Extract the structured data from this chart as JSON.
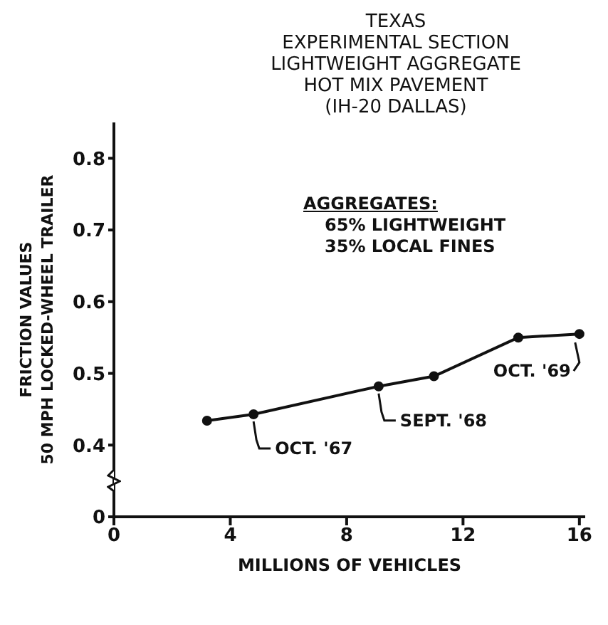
{
  "chart_data": {
    "type": "line",
    "title": "TEXAS\nEXPERIMENTAL SECTION\nLIGHTWEIGHT AGGREGATE\nHOT MIX PAVEMENT\n(IH-20 DALLAS)",
    "xlabel": "MILLIONS OF VEHICLES",
    "ylabel": "FRICTION VALUES\n50 MPH LOCKED-WHEEL TRAILER",
    "x": [
      3.2,
      4.8,
      9.1,
      11,
      13.9,
      16
    ],
    "series": [
      {
        "color": "#111111",
        "values": [
          0.434,
          0.443,
          0.482,
          0.496,
          0.55,
          0.555
        ]
      }
    ],
    "xlim": [
      0,
      16.2
    ],
    "xticks": [
      0,
      4,
      8,
      12,
      16
    ],
    "ylim": [
      0.3,
      0.85
    ],
    "yticks": [
      {
        "value": 0.3,
        "label": "0"
      },
      0.4,
      0.5,
      0.6,
      0.7,
      0.8
    ],
    "marker": "circle",
    "line_style": "solid",
    "grid": false,
    "annotations": [
      {
        "text": "OCT. '67",
        "x": 4.8,
        "y": 0.443
      },
      {
        "text": "SEPT. '68",
        "x": 9.1,
        "y": 0.482
      },
      {
        "text": "OCT. '69",
        "x": 16,
        "y": 0.555
      },
      "AGGREGATES:\n65% LIGHTWEIGHT\n35% LOCAL FINES"
    ]
  }
}
